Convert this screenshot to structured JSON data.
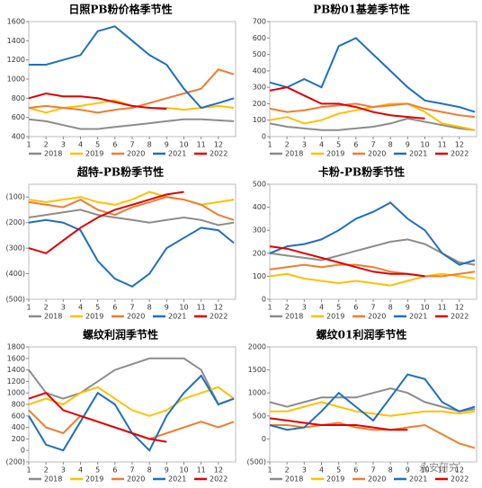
{
  "chart_data": [
    {
      "type": "line",
      "title": "日照PB粉价格季节性",
      "x": [
        1,
        2,
        3,
        4,
        5,
        6,
        7,
        8,
        9,
        10,
        11,
        12,
        12.9
      ],
      "xlim": [
        1,
        13
      ],
      "xticks": [
        1,
        2,
        3,
        4,
        5,
        6,
        7,
        8,
        9,
        10,
        11,
        12
      ],
      "ylim": [
        400,
        1600
      ],
      "yticks": [
        400,
        600,
        800,
        1000,
        1200,
        1400,
        1600
      ],
      "series": [
        {
          "name": "2018",
          "color": "#8c8c8c",
          "values": [
            580,
            560,
            520,
            480,
            480,
            500,
            520,
            540,
            560,
            580,
            580,
            570,
            560
          ]
        },
        {
          "name": "2019",
          "color": "#ffc000",
          "values": [
            700,
            650,
            700,
            720,
            750,
            780,
            720,
            700,
            700,
            680,
            700,
            720,
            700
          ]
        },
        {
          "name": "2020",
          "color": "#ed7d31",
          "values": [
            700,
            720,
            700,
            680,
            650,
            680,
            700,
            750,
            800,
            850,
            900,
            1100,
            1050
          ]
        },
        {
          "name": "2021",
          "color": "#1f6fbf",
          "values": [
            1150,
            1150,
            1200,
            1250,
            1500,
            1550,
            1400,
            1250,
            1150,
            900,
            700,
            750,
            800
          ]
        },
        {
          "name": "2022",
          "color": "#e00000",
          "values": [
            800,
            850,
            820,
            820,
            800,
            760,
            720,
            700,
            690,
            null,
            null,
            null,
            null
          ]
        }
      ]
    },
    {
      "type": "line",
      "title": "PB粉01基差季节性",
      "x": [
        1,
        2,
        3,
        4,
        5,
        6,
        7,
        8,
        9,
        10,
        11,
        12,
        12.9
      ],
      "xlim": [
        1,
        13
      ],
      "xticks": [
        1,
        2,
        3,
        4,
        5,
        6,
        7,
        8,
        9,
        10,
        11,
        12
      ],
      "ylim": [
        0,
        700
      ],
      "yticks": [
        0,
        100,
        200,
        300,
        400,
        500,
        600,
        700
      ],
      "series": [
        {
          "name": "2018",
          "color": "#8c8c8c",
          "values": [
            80,
            60,
            50,
            40,
            40,
            50,
            60,
            80,
            110,
            90,
            70,
            50,
            40
          ]
        },
        {
          "name": "2019",
          "color": "#ffc000",
          "values": [
            100,
            120,
            80,
            100,
            140,
            160,
            180,
            200,
            200,
            150,
            80,
            60,
            40
          ]
        },
        {
          "name": "2020",
          "color": "#ed7d31",
          "values": [
            170,
            150,
            160,
            180,
            190,
            200,
            180,
            190,
            200,
            170,
            150,
            130,
            120
          ]
        },
        {
          "name": "2021",
          "color": "#1f6fbf",
          "values": [
            330,
            300,
            350,
            300,
            550,
            600,
            500,
            400,
            300,
            220,
            200,
            180,
            150
          ]
        },
        {
          "name": "2022",
          "color": "#e00000",
          "values": [
            280,
            300,
            250,
            200,
            200,
            180,
            150,
            130,
            120,
            110,
            null,
            null,
            null
          ]
        }
      ]
    },
    {
      "type": "line",
      "title": "超特-PB粉季节性",
      "x": [
        1,
        2,
        3,
        4,
        5,
        6,
        7,
        8,
        9,
        10,
        11,
        12,
        12.9
      ],
      "xlim": [
        1,
        13
      ],
      "xticks": [
        1,
        2,
        3,
        4,
        5,
        6,
        7,
        8,
        9,
        10,
        11,
        12
      ],
      "ylim": [
        -500,
        -50
      ],
      "yticks": [
        {
          "value": -500,
          "label": "(500)"
        },
        {
          "value": -400,
          "label": "(400)"
        },
        {
          "value": -300,
          "label": "(300)"
        },
        {
          "value": -200,
          "label": "(200)"
        },
        {
          "value": -100,
          "label": "(100)"
        }
      ],
      "series": [
        {
          "name": "2018",
          "color": "#8c8c8c",
          "values": [
            -180,
            -170,
            -160,
            -150,
            -170,
            -180,
            -190,
            -200,
            -190,
            -180,
            -190,
            -210,
            -200
          ]
        },
        {
          "name": "2019",
          "color": "#ffc000",
          "values": [
            -110,
            -120,
            -110,
            -100,
            -120,
            -130,
            -110,
            -80,
            -100,
            -110,
            -130,
            -120,
            -110
          ]
        },
        {
          "name": "2020",
          "color": "#ed7d31",
          "values": [
            -120,
            -130,
            -140,
            -110,
            -150,
            -170,
            -140,
            -120,
            -100,
            -110,
            -130,
            -170,
            -190
          ]
        },
        {
          "name": "2021",
          "color": "#1f6fbf",
          "values": [
            -200,
            -190,
            -200,
            -230,
            -350,
            -420,
            -450,
            -400,
            -300,
            -260,
            -220,
            -230,
            -280
          ]
        },
        {
          "name": "2022",
          "color": "#e00000",
          "values": [
            -300,
            -320,
            -270,
            -220,
            -180,
            -150,
            -130,
            -110,
            -90,
            -80,
            null,
            null,
            null
          ]
        }
      ]
    },
    {
      "type": "line",
      "title": "卡粉-PB粉季节性",
      "x": [
        1,
        2,
        3,
        4,
        5,
        6,
        7,
        8,
        9,
        10,
        11,
        12,
        12.9
      ],
      "xlim": [
        1,
        13
      ],
      "xticks": [
        1,
        2,
        3,
        4,
        5,
        6,
        7,
        8,
        9,
        10,
        11,
        12
      ],
      "ylim": [
        0,
        500
      ],
      "yticks": [
        0,
        100,
        200,
        300,
        400,
        500
      ],
      "series": [
        {
          "name": "2018",
          "color": "#8c8c8c",
          "values": [
            200,
            190,
            180,
            170,
            190,
            210,
            230,
            250,
            260,
            240,
            200,
            160,
            150
          ]
        },
        {
          "name": "2019",
          "color": "#ffc000",
          "values": [
            100,
            110,
            90,
            80,
            70,
            80,
            70,
            60,
            80,
            100,
            110,
            100,
            90
          ]
        },
        {
          "name": "2020",
          "color": "#ed7d31",
          "values": [
            130,
            140,
            150,
            140,
            150,
            150,
            140,
            120,
            110,
            100,
            100,
            110,
            120
          ]
        },
        {
          "name": "2021",
          "color": "#1f6fbf",
          "values": [
            200,
            230,
            240,
            260,
            300,
            350,
            380,
            420,
            350,
            300,
            200,
            150,
            170
          ]
        },
        {
          "name": "2022",
          "color": "#e00000",
          "values": [
            230,
            220,
            200,
            180,
            160,
            140,
            120,
            110,
            110,
            100,
            null,
            null,
            null
          ]
        }
      ]
    },
    {
      "type": "line",
      "title": "螺纹利润季节性",
      "x": [
        1,
        2,
        3,
        4,
        5,
        6,
        7,
        8,
        9,
        10,
        11,
        12,
        12.9
      ],
      "xlim": [
        1,
        13
      ],
      "xticks": [
        1,
        2,
        3,
        4,
        5,
        6,
        7,
        8,
        9,
        10,
        11,
        12
      ],
      "ylim": [
        -200,
        1800
      ],
      "yticks": [
        {
          "value": -200,
          "label": "(200)"
        },
        0,
        200,
        400,
        600,
        800,
        1000,
        1200,
        1400,
        1600,
        1800
      ],
      "series": [
        {
          "name": "2018",
          "color": "#8c8c8c",
          "values": [
            1400,
            1000,
            900,
            1000,
            1200,
            1400,
            1500,
            1600,
            1600,
            1600,
            1400,
            800,
            900
          ]
        },
        {
          "name": "2019",
          "color": "#ffc000",
          "values": [
            800,
            900,
            800,
            1000,
            1100,
            900,
            700,
            600,
            700,
            900,
            1000,
            1100,
            900
          ]
        },
        {
          "name": "2020",
          "color": "#ed7d31",
          "values": [
            700,
            400,
            300,
            600,
            500,
            400,
            300,
            200,
            300,
            400,
            500,
            400,
            500
          ]
        },
        {
          "name": "2021",
          "color": "#1f6fbf",
          "values": [
            600,
            100,
            0,
            500,
            1000,
            800,
            300,
            0,
            600,
            1000,
            1300,
            800,
            900
          ]
        },
        {
          "name": "2022",
          "color": "#e00000",
          "values": [
            900,
            1000,
            700,
            600,
            500,
            400,
            300,
            200,
            150,
            null,
            null,
            null,
            null
          ]
        }
      ]
    },
    {
      "type": "line",
      "title": "螺纹01利润季节性",
      "x": [
        1,
        2,
        3,
        4,
        5,
        6,
        7,
        8,
        9,
        10,
        11,
        12,
        12.9
      ],
      "xlim": [
        1,
        13
      ],
      "xticks": [
        1,
        2,
        3,
        4,
        5,
        6,
        7,
        8,
        9,
        10,
        11,
        12
      ],
      "ylim": [
        -500,
        2000
      ],
      "yticks": [
        {
          "value": -500,
          "label": "(500)"
        },
        0,
        500,
        1000,
        1500,
        2000
      ],
      "series": [
        {
          "name": "2018",
          "color": "#8c8c8c",
          "values": [
            800,
            700,
            800,
            900,
            900,
            900,
            1000,
            1100,
            1000,
            800,
            700,
            600,
            650
          ]
        },
        {
          "name": "2019",
          "color": "#ffc000",
          "values": [
            600,
            600,
            700,
            800,
            700,
            600,
            550,
            500,
            550,
            600,
            600,
            550,
            600
          ]
        },
        {
          "name": "2020",
          "color": "#ed7d31",
          "values": [
            300,
            300,
            250,
            300,
            350,
            250,
            200,
            200,
            250,
            300,
            100,
            -100,
            -200
          ]
        },
        {
          "name": "2021",
          "color": "#1f6fbf",
          "values": [
            300,
            200,
            250,
            600,
            1000,
            700,
            400,
            900,
            1400,
            1300,
            800,
            600,
            700
          ]
        },
        {
          "name": "2022",
          "color": "#e00000",
          "values": [
            450,
            400,
            350,
            300,
            300,
            300,
            250,
            200,
            200,
            null,
            null,
            null,
            null
          ]
        }
      ]
    }
  ],
  "watermark": "永安研究"
}
